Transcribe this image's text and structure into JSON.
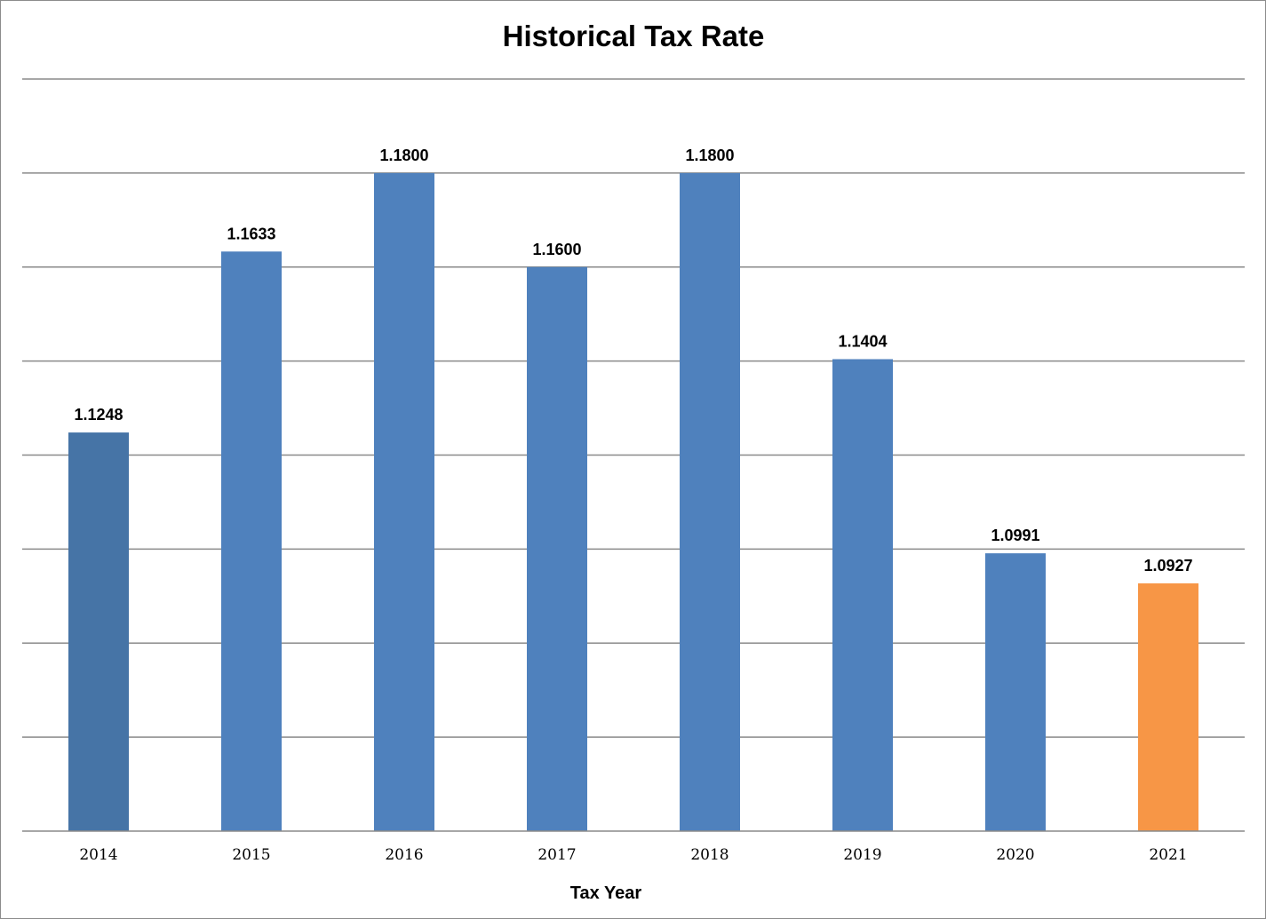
{
  "chart_data": {
    "type": "bar",
    "title": "Historical Tax Rate",
    "xlabel": "Tax Year",
    "ylabel": "",
    "categories": [
      "2014",
      "2015",
      "2016",
      "2017",
      "2018",
      "2019",
      "2020",
      "2021"
    ],
    "values": [
      1.1248,
      1.1633,
      1.18,
      1.16,
      1.18,
      1.1404,
      1.0991,
      1.0927
    ],
    "data_labels": [
      "1.1248",
      "1.1633",
      "1.1800",
      "1.1600",
      "1.1800",
      "1.1404",
      "1.0991",
      "1.0927"
    ],
    "ylim": [
      1.04,
      1.2
    ],
    "grid": true,
    "legend": "none",
    "bar_colors": [
      "#4674a6",
      "#4f81bd",
      "#4f81bd",
      "#4f81bd",
      "#4f81bd",
      "#4f81bd",
      "#4f81bd",
      "#f79646"
    ]
  }
}
